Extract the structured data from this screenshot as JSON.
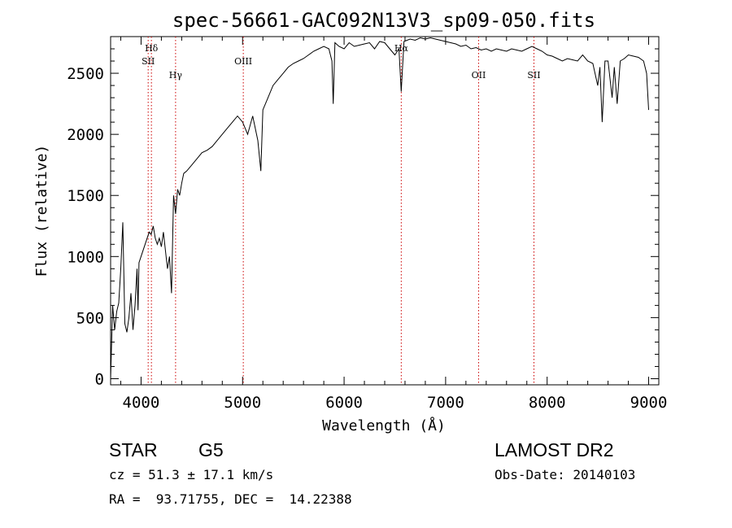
{
  "chart_data": {
    "type": "line",
    "title": "spec-56661-GAC092N13V3_sp09-050.fits",
    "xlabel": "Wavelength (Å)",
    "ylabel": "Flux (relative)",
    "xlim": [
      3700,
      9100
    ],
    "ylim": [
      -50,
      2800
    ],
    "x_ticks": [
      4000,
      5000,
      6000,
      7000,
      8000,
      9000
    ],
    "y_ticks": [
      0,
      500,
      1000,
      1500,
      2000,
      2500
    ],
    "grid": false,
    "series": [
      {
        "color": "#000000",
        "x": [
          3700,
          3720,
          3740,
          3760,
          3780,
          3800,
          3820,
          3840,
          3860,
          3880,
          3900,
          3920,
          3940,
          3960,
          3970,
          3980,
          4000,
          4020,
          4040,
          4060,
          4080,
          4100,
          4120,
          4140,
          4160,
          4180,
          4200,
          4220,
          4240,
          4260,
          4280,
          4300,
          4320,
          4340,
          4360,
          4380,
          4400,
          4420,
          4450,
          4500,
          4550,
          4600,
          4650,
          4700,
          4750,
          4800,
          4850,
          4900,
          4950,
          5000,
          5050,
          5100,
          5150,
          5180,
          5200,
          5250,
          5300,
          5350,
          5400,
          5450,
          5500,
          5550,
          5600,
          5650,
          5700,
          5750,
          5800,
          5850,
          5880,
          5893,
          5910,
          5950,
          6000,
          6050,
          6100,
          6150,
          6200,
          6250,
          6300,
          6350,
          6400,
          6450,
          6500,
          6540,
          6563,
          6590,
          6650,
          6700,
          6750,
          6800,
          6850,
          6900,
          6950,
          7000,
          7050,
          7100,
          7150,
          7200,
          7250,
          7300,
          7350,
          7400,
          7450,
          7500,
          7550,
          7600,
          7650,
          7700,
          7750,
          7800,
          7850,
          7900,
          7950,
          8000,
          8050,
          8100,
          8150,
          8200,
          8250,
          8300,
          8350,
          8400,
          8450,
          8498,
          8520,
          8542,
          8570,
          8600,
          8640,
          8662,
          8690,
          8720,
          8760,
          8800,
          8850,
          8900,
          8950,
          8980,
          9000
        ],
        "values": [
          0,
          600,
          400,
          550,
          620,
          900,
          1280,
          450,
          380,
          500,
          700,
          400,
          600,
          900,
          560,
          950,
          1000,
          1050,
          1100,
          1150,
          1200,
          1180,
          1250,
          1150,
          1100,
          1150,
          1080,
          1200,
          1050,
          900,
          1000,
          700,
          1500,
          1350,
          1550,
          1500,
          1600,
          1680,
          1700,
          1750,
          1800,
          1850,
          1870,
          1900,
          1950,
          2000,
          2050,
          2100,
          2150,
          2100,
          2000,
          2150,
          1950,
          1700,
          2200,
          2300,
          2400,
          2450,
          2500,
          2550,
          2580,
          2600,
          2620,
          2650,
          2680,
          2700,
          2720,
          2700,
          2600,
          2250,
          2750,
          2720,
          2700,
          2750,
          2720,
          2730,
          2740,
          2750,
          2700,
          2760,
          2750,
          2700,
          2650,
          2700,
          2350,
          2760,
          2780,
          2770,
          2790,
          2780,
          2790,
          2780,
          2770,
          2760,
          2750,
          2740,
          2720,
          2730,
          2700,
          2710,
          2690,
          2700,
          2680,
          2700,
          2690,
          2680,
          2700,
          2690,
          2680,
          2700,
          2720,
          2700,
          2680,
          2650,
          2640,
          2620,
          2600,
          2620,
          2610,
          2600,
          2650,
          2600,
          2580,
          2400,
          2550,
          2100,
          2600,
          2600,
          2300,
          2550,
          2250,
          2600,
          2620,
          2650,
          2640,
          2630,
          2600,
          2500,
          2200
        ]
      }
    ],
    "line_markers": [
      {
        "label": "Hδ",
        "x": 4102,
        "color": "#cc0000"
      },
      {
        "label": "SII",
        "x": 4070,
        "color": "#cc0000"
      },
      {
        "label": "Hγ",
        "x": 4340,
        "color": "#cc0000"
      },
      {
        "label": "OIII",
        "x": 5007,
        "color": "#cc0000"
      },
      {
        "label": "Hα",
        "x": 6563,
        "color": "#cc0000"
      },
      {
        "label": "OII",
        "x": 7325,
        "color": "#cc0000"
      },
      {
        "label": "SII",
        "x": 7870,
        "color": "#cc0000"
      }
    ]
  },
  "info": {
    "class": "STAR",
    "subclass": "G5",
    "survey": "LAMOST DR2",
    "cz": "cz = 51.3 ± 17.1 km/s",
    "obs_date": "Obs-Date: 20140103",
    "coords": "RA =  93.71755, DEC =  14.22388"
  }
}
